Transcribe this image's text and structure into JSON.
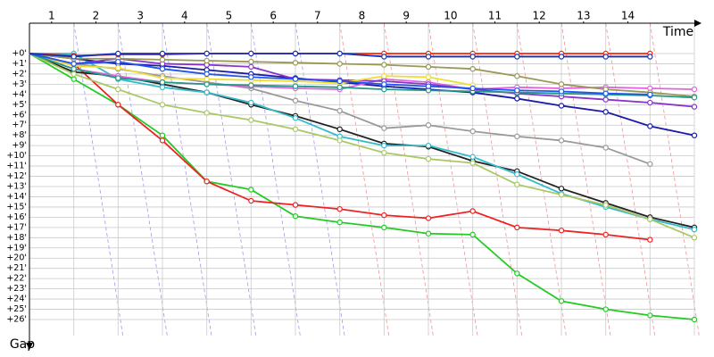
{
  "chart_data": {
    "type": "line",
    "x_label": "Time",
    "y_label": "Gap",
    "x": [
      0,
      1,
      2,
      3,
      4,
      5,
      6,
      7,
      8,
      9,
      10,
      11,
      12,
      13,
      14,
      15
    ],
    "xlim": [
      0,
      15
    ],
    "xticks": [
      {
        "value": 0.5,
        "label": "1"
      },
      {
        "value": 1.5,
        "label": "2"
      },
      {
        "value": 2.5,
        "label": "3"
      },
      {
        "value": 3.5,
        "label": "4"
      },
      {
        "value": 4.5,
        "label": "5"
      },
      {
        "value": 5.5,
        "label": "6"
      },
      {
        "value": 6.5,
        "label": "7"
      },
      {
        "value": 7.5,
        "label": "8"
      },
      {
        "value": 8.5,
        "label": "9"
      },
      {
        "value": 9.5,
        "label": "10"
      },
      {
        "value": 10.5,
        "label": "11"
      },
      {
        "value": 11.5,
        "label": "12"
      },
      {
        "value": 12.5,
        "label": "13"
      },
      {
        "value": 13.5,
        "label": "14"
      }
    ],
    "ylim": [
      0,
      26
    ],
    "yticks": [
      {
        "value": 0,
        "label": "+0'"
      },
      {
        "value": 1,
        "label": "+1'"
      },
      {
        "value": 2,
        "label": "+2'"
      },
      {
        "value": 3,
        "label": "+3'"
      },
      {
        "value": 4,
        "label": "+4'"
      },
      {
        "value": 5,
        "label": "+5'"
      },
      {
        "value": 6,
        "label": "+6'"
      },
      {
        "value": 7,
        "label": "+7'"
      },
      {
        "value": 8,
        "label": "+8'"
      },
      {
        "value": 9,
        "label": "+9'"
      },
      {
        "value": 10,
        "label": "+10'"
      },
      {
        "value": 11,
        "label": "+11'"
      },
      {
        "value": 12,
        "label": "+12'"
      },
      {
        "value": 13,
        "label": "+13'"
      },
      {
        "value": 14,
        "label": "+14'"
      },
      {
        "value": 15,
        "label": "+15'"
      },
      {
        "value": 16,
        "label": "+16'"
      },
      {
        "value": 17,
        "label": "+17'"
      },
      {
        "value": 18,
        "label": "+18'"
      },
      {
        "value": 19,
        "label": "+19'"
      },
      {
        "value": 20,
        "label": "+20'"
      },
      {
        "value": 21,
        "label": "+21'"
      },
      {
        "value": 22,
        "label": "+22'"
      },
      {
        "value": 23,
        "label": "+23'"
      },
      {
        "value": 24,
        "label": "+24'"
      },
      {
        "value": 25,
        "label": "+25'"
      },
      {
        "value": 26,
        "label": "+26'"
      }
    ],
    "grid": true,
    "y_inverted": true,
    "series": [
      {
        "color": "#22cc22",
        "values": [
          0,
          2.5,
          5,
          8,
          12.5,
          13.3,
          15.9,
          16.5,
          17,
          17.6,
          17.7,
          21.5,
          24.2,
          25,
          25.6,
          26
        ]
      },
      {
        "color": "#ee2222",
        "values": [
          0,
          1,
          5,
          8.5,
          12.5,
          14.4,
          14.8,
          15.2,
          15.8,
          16.1,
          15.4,
          17,
          17.3,
          17.7,
          18.2,
          null
        ]
      },
      {
        "color": "#222222",
        "values": [
          0,
          1.8,
          2.2,
          3,
          3.8,
          5,
          6.1,
          7.4,
          8.8,
          9.1,
          10.5,
          11.5,
          13.2,
          14.6,
          16,
          17
        ]
      },
      {
        "color": "#33bbcc",
        "values": [
          0,
          0,
          2.5,
          3.3,
          3.8,
          4.8,
          6.3,
          8.1,
          9,
          9,
          10.1,
          11.8,
          13.7,
          15,
          16.2,
          17.2
        ]
      },
      {
        "color": "#999999",
        "values": [
          0,
          1,
          1.5,
          2.2,
          2.8,
          3.4,
          4.6,
          5.6,
          7.3,
          7,
          7.6,
          8.1,
          8.5,
          9.2,
          10.8,
          null
        ]
      },
      {
        "color": "#aac866",
        "values": [
          0,
          2,
          3.5,
          5,
          5.8,
          6.5,
          7.4,
          8.5,
          9.7,
          10.3,
          10.7,
          12.8,
          13.8,
          14.8,
          16.2,
          18
        ]
      },
      {
        "color": "#1a1aaa",
        "values": [
          0,
          0.5,
          1,
          1.2,
          1.6,
          2,
          2.4,
          2.8,
          3.2,
          3.5,
          3.8,
          4.4,
          5.1,
          5.7,
          7.1,
          8
        ]
      },
      {
        "color": "#dd66dd",
        "values": [
          0,
          1.5,
          2.2,
          2.8,
          3,
          3.2,
          3.4,
          3.5,
          2.5,
          2.8,
          3.5,
          3.3,
          3.4,
          3.3,
          3.4,
          3.5
        ]
      },
      {
        "color": "#8833cc",
        "values": [
          0,
          1,
          0.5,
          1,
          1.1,
          1.3,
          2.5,
          2.6,
          2.7,
          3,
          3.5,
          3.9,
          4.2,
          4.5,
          4.8,
          5.2
        ]
      },
      {
        "color": "#999955",
        "values": [
          0,
          0.5,
          0.5,
          0.6,
          0.7,
          0.8,
          0.9,
          1,
          1.1,
          1.3,
          1.5,
          2.2,
          3,
          3.5,
          3.8,
          4.2
        ]
      },
      {
        "color": "#eedd33",
        "values": [
          0,
          1.2,
          1.4,
          2.4,
          2.5,
          2.6,
          2.7,
          2.9,
          2.2,
          2.3,
          3.1,
          null,
          null,
          null,
          null,
          null
        ]
      },
      {
        "color": "#229988",
        "values": [
          0,
          1.5,
          2.4,
          2.8,
          3,
          3.1,
          3.2,
          3.3,
          3.5,
          3.6,
          3.7,
          3.8,
          3.9,
          4,
          4.1,
          4.3
        ]
      },
      {
        "color": "#2255ee",
        "values": [
          0,
          1,
          0.8,
          1.5,
          2,
          2.3,
          2.5,
          2.7,
          3,
          3.2,
          3.4,
          3.6,
          3.7,
          3.9,
          4,
          null
        ]
      },
      {
        "color": "#ff2200",
        "values": [
          0,
          0.2,
          0.1,
          0.1,
          0,
          0,
          0,
          0,
          0,
          0,
          0,
          0,
          0,
          0,
          0,
          null
        ]
      },
      {
        "color": "#1133bb",
        "values": [
          0,
          0.3,
          0,
          0,
          0,
          0,
          0,
          0,
          0.3,
          0.3,
          0.3,
          0.3,
          0.3,
          0.3,
          0.3,
          null
        ]
      }
    ]
  }
}
